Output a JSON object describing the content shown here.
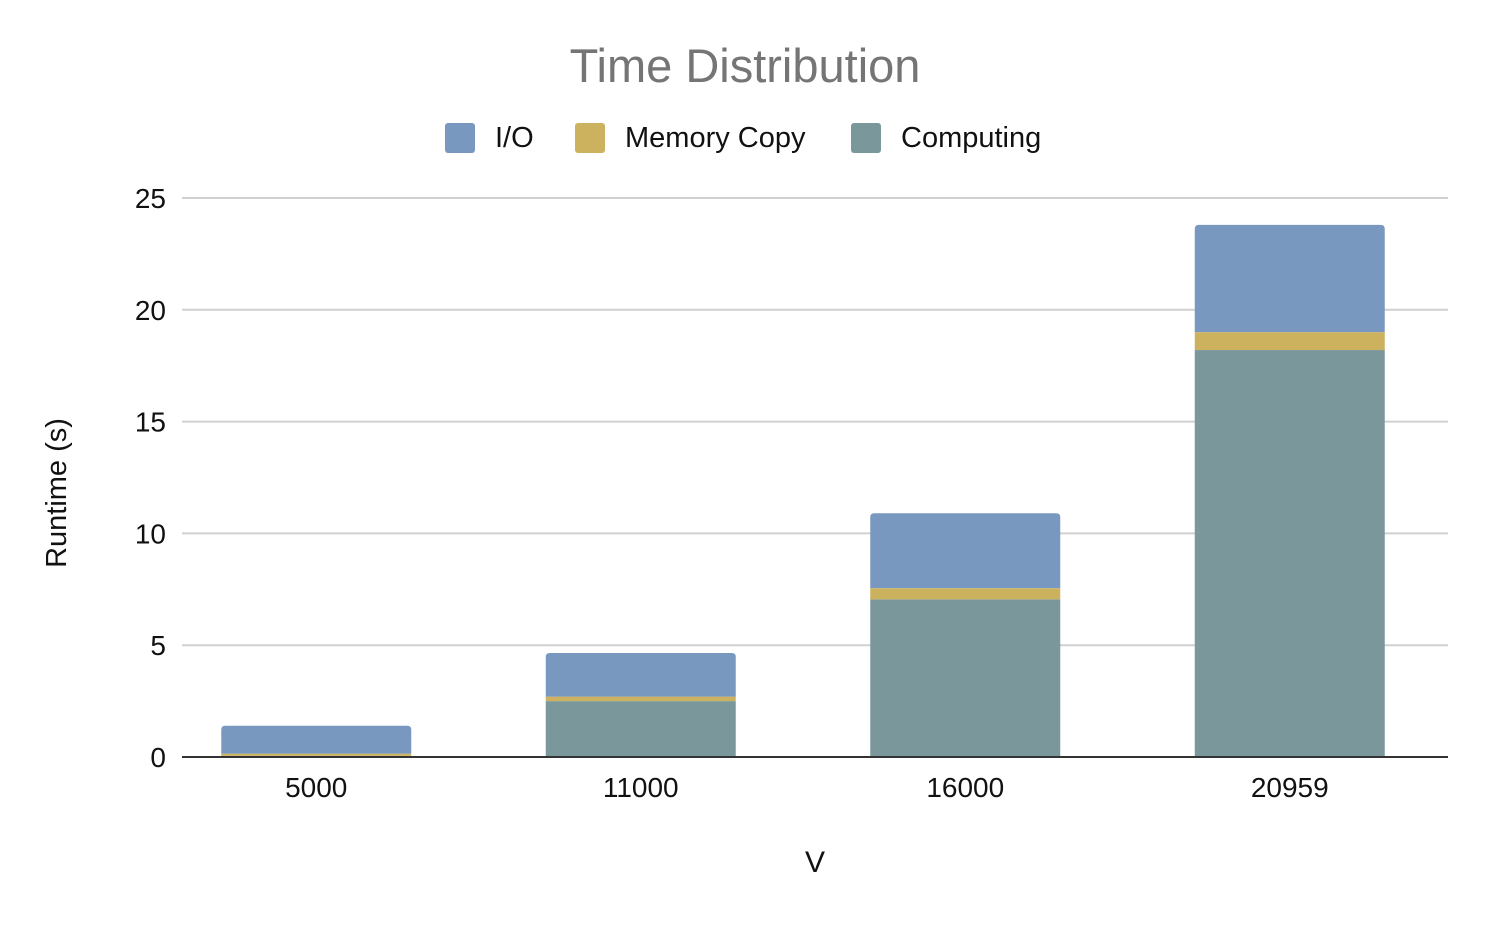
{
  "chart_data": {
    "type": "bar",
    "stacked": true,
    "title": "Time Distribution",
    "xlabel": "V",
    "ylabel": "Runtime (s)",
    "categories": [
      "5000",
      "11000",
      "16000",
      "20959"
    ],
    "series": [
      {
        "name": "Computing",
        "color": "#7a979b",
        "values": [
          0.05,
          2.5,
          7.05,
          18.2
        ]
      },
      {
        "name": "Memory Copy",
        "color": "#ccb25e",
        "values": [
          0.1,
          0.2,
          0.5,
          0.8
        ]
      },
      {
        "name": "I/O",
        "color": "#7898c0",
        "values": [
          1.25,
          1.95,
          3.35,
          4.8
        ]
      }
    ],
    "legend_order": [
      "I/O",
      "Memory Copy",
      "Computing"
    ],
    "ylim": [
      0,
      25
    ],
    "yticks": [
      0,
      5,
      10,
      15,
      20,
      25
    ],
    "grid": true,
    "legend_position": "top-center"
  }
}
